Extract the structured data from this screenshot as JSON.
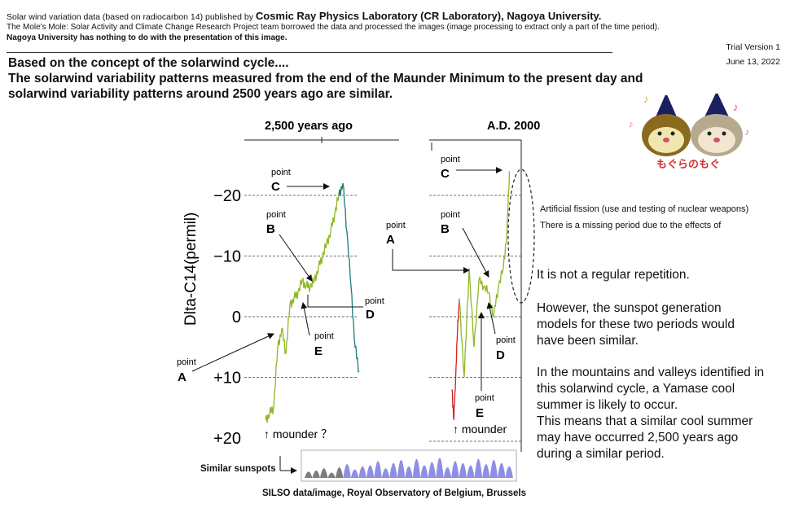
{
  "header": {
    "line1_prefix": "Solar wind variation data (based on radiocarbon 14) published by ",
    "line1_bold": "Cosmic Ray Physics Laboratory (CR Laboratory), Nagoya University.",
    "line2": "The Mole's Mole: Solar Activity and Climate Change Research Project team borrowed the data and processed the images (image processing to extract only a part of the time period).",
    "line3": "Nagoya University has nothing to do with the presentation of this image.",
    "version": "Trial Version 1",
    "date": "June 13, 2022"
  },
  "heading": {
    "line1": "Based on the concept of the solarwind cycle....",
    "line2": "The solarwind variability patterns measured from the end of the Maunder Minimum to the present day and",
    "line3": "solarwind variability patterns around 2500 years ago are similar."
  },
  "chart_data": [
    {
      "type": "line",
      "title": "2,500 years ago",
      "ylabel": "Dlta-C14(permil)",
      "y_tick_labels": [
        "−20",
        "−10",
        "0",
        "+10",
        "+20"
      ],
      "y_ticks": [
        -20,
        -10,
        0,
        10,
        20
      ],
      "ylim": [
        20,
        -25
      ],
      "y_axis_inverted": true,
      "grid": "dashed horizontal",
      "series": [
        {
          "color": "#8db824",
          "x": [
            0,
            5,
            10,
            15,
            20,
            25,
            30,
            35,
            40,
            45,
            50,
            55,
            60,
            65,
            70,
            75,
            80,
            85,
            90,
            95
          ],
          "values": [
            17,
            16,
            15,
            5,
            2,
            6,
            -2,
            -3,
            -4,
            -6,
            -5,
            -5,
            -6,
            -8,
            -10,
            -12,
            -14,
            -17,
            -20,
            -22
          ]
        },
        {
          "color": "#1f7a7a",
          "x": [
            90,
            95,
            100,
            105,
            110,
            115
          ],
          "values": [
            -20,
            -22,
            -14,
            -5,
            5,
            9
          ]
        }
      ],
      "annotations": [
        {
          "label": "point",
          "letter": "C"
        },
        {
          "label": "point",
          "letter": "B"
        },
        {
          "label": "point",
          "letter": "D"
        },
        {
          "label": "point",
          "letter": "E"
        },
        {
          "label": "point",
          "letter": "A"
        }
      ],
      "note": "↑ mounder ？"
    },
    {
      "type": "line",
      "title": "A.D. 2000",
      "ylim": [
        20,
        -25
      ],
      "y_axis_inverted": true,
      "series": [
        {
          "color": "#d42020",
          "x": [
            0,
            3,
            6,
            9,
            12
          ],
          "values": [
            12,
            17,
            10,
            2,
            -3
          ]
        },
        {
          "color": "#8db824",
          "x": [
            12,
            20,
            28,
            36,
            44,
            52,
            60,
            68,
            76,
            84,
            90,
            94
          ],
          "values": [
            -3,
            10,
            -8,
            5,
            -6,
            -5,
            -4,
            0,
            -5,
            -8,
            -14,
            -24
          ]
        }
      ],
      "annotations": [
        {
          "label": "point",
          "letter": "C"
        },
        {
          "label": "point",
          "letter": "B"
        },
        {
          "label": "point",
          "letter": "A"
        },
        {
          "label": "point",
          "letter": "D"
        },
        {
          "label": "point",
          "letter": "E"
        }
      ],
      "note": "↑ mounder"
    }
  ],
  "side_notes": {
    "fission_1": "Artificial fission (use and testing of nuclear weapons)",
    "fission_2": "There is a missing period due to the effects of",
    "p1": "It is not a regular repetition.",
    "p2_1": "However, the sunspot generation",
    "p2_2": "models for these two periods would",
    "p2_3": "have been similar.",
    "p3_1": "In the mountains and valleys identified in",
    "p3_2": "this solarwind cycle, a Yamase cool",
    "p3_3": "summer is likely to occur.",
    "p3_4": "This means that a similar cool summer",
    "p3_5": "may have occurred 2,500 years ago",
    "p3_6": "during a similar period."
  },
  "sunspots": {
    "label": "Similar sunspots",
    "credit": "SILSO data/image, Royal Observatory of Belgium, Brussels",
    "values": [
      0.3,
      0.35,
      0.45,
      0.25,
      0.5,
      0.65,
      0.4,
      0.55,
      0.6,
      0.8,
      0.45,
      0.7,
      0.85,
      0.55,
      0.9,
      0.6,
      0.75,
      0.95,
      0.5,
      0.8,
      0.7,
      0.6,
      0.9,
      0.65,
      0.85,
      0.7,
      0.55
    ]
  },
  "mascot": {
    "text": "もぐらのもぐ"
  },
  "colors": {
    "green": "#8db824",
    "teal": "#1f7a7a",
    "red": "#d42020",
    "sunspot": "#7a7ae0"
  }
}
